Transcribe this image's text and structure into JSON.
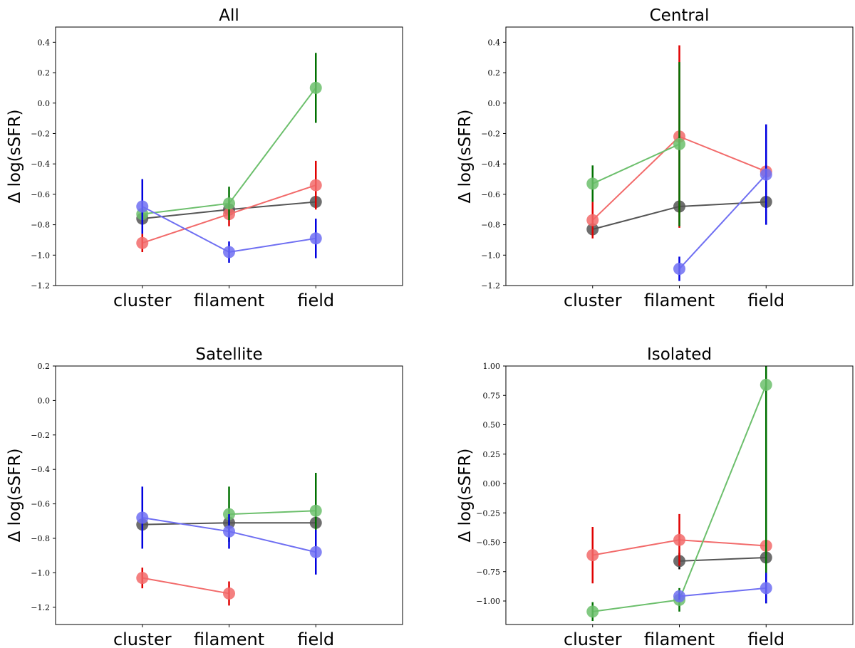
{
  "colors": {
    "black": "#555555",
    "red": "#f26a6a",
    "green": "#6cbf6c",
    "blue": "#6f6ff2",
    "err_black": "#000000",
    "err_red": "#e00000",
    "err_green": "#007000",
    "err_blue": "#0000e0"
  },
  "chart_data": [
    {
      "type": "line",
      "title": "All",
      "ylabel": "Δ log(sSFR)",
      "categories": [
        "cluster",
        "filament",
        "field"
      ],
      "ylim": [
        -1.2,
        0.5
      ],
      "yticks": [
        "−1.2",
        "−1.0",
        "−0.8",
        "−0.6",
        "−0.4",
        "−0.2",
        "0.0",
        "0.2",
        "0.4"
      ],
      "ytick_values": [
        -1.2,
        -1.0,
        -0.8,
        -0.6,
        -0.4,
        -0.2,
        0.0,
        0.2,
        0.4
      ],
      "series": [
        {
          "color": "black",
          "values": [
            -0.76,
            -0.7,
            -0.65
          ],
          "err": [
            0.02,
            0.02,
            0.01
          ]
        },
        {
          "color": "red",
          "values": [
            -0.92,
            -0.73,
            -0.54
          ],
          "err": [
            0.06,
            0.08,
            0.16
          ]
        },
        {
          "color": "green",
          "values": [
            -0.73,
            -0.66,
            0.1
          ],
          "err": [
            0.04,
            0.11,
            0.23
          ]
        },
        {
          "color": "blue",
          "values": [
            -0.68,
            -0.98,
            -0.89
          ],
          "err": [
            0.18,
            0.07,
            0.13
          ]
        }
      ]
    },
    {
      "type": "line",
      "title": "Central",
      "ylabel": "Δ log(sSFR)",
      "categories": [
        "cluster",
        "filament",
        "field"
      ],
      "ylim": [
        -1.2,
        0.5
      ],
      "yticks": [
        "−1.2",
        "−1.0",
        "−0.8",
        "−0.6",
        "−0.4",
        "−0.2",
        "0.0",
        "0.2",
        "0.4"
      ],
      "ytick_values": [
        -1.2,
        -1.0,
        -0.8,
        -0.6,
        -0.4,
        -0.2,
        0.0,
        0.2,
        0.4
      ],
      "series": [
        {
          "color": "black",
          "values": [
            -0.83,
            -0.68,
            -0.65
          ],
          "err": [
            0.02,
            0.02,
            0.02
          ]
        },
        {
          "color": "red",
          "values": [
            -0.77,
            -0.22,
            -0.45
          ],
          "err": [
            0.12,
            0.6,
            0.03
          ]
        },
        {
          "color": "green",
          "values": [
            -0.53,
            -0.27,
            null
          ],
          "err": [
            0.12,
            0.54,
            null
          ]
        },
        {
          "color": "blue",
          "values": [
            null,
            -1.09,
            -0.47
          ],
          "err": [
            null,
            0.08,
            0.33
          ]
        }
      ]
    },
    {
      "type": "line",
      "title": "Satellite",
      "ylabel": "Δ log(sSFR)",
      "categories": [
        "cluster",
        "filament",
        "field"
      ],
      "ylim": [
        -1.3,
        0.2
      ],
      "yticks": [
        "−1.2",
        "−1.0",
        "−0.8",
        "−0.6",
        "−0.4",
        "−0.2",
        "0.0",
        "0.2"
      ],
      "ytick_values": [
        -1.2,
        -1.0,
        -0.8,
        -0.6,
        -0.4,
        -0.2,
        0.0,
        0.2
      ],
      "series": [
        {
          "color": "black",
          "values": [
            -0.72,
            -0.71,
            -0.71
          ],
          "err": [
            0.02,
            0.02,
            0.02
          ]
        },
        {
          "color": "red",
          "values": [
            -1.03,
            -1.12,
            null
          ],
          "err": [
            0.06,
            0.07,
            null
          ]
        },
        {
          "color": "green",
          "values": [
            null,
            -0.66,
            -0.64
          ],
          "err": [
            null,
            0.16,
            0.22
          ]
        },
        {
          "color": "blue",
          "values": [
            -0.68,
            -0.76,
            -0.88
          ],
          "err": [
            0.18,
            0.1,
            0.13
          ]
        }
      ]
    },
    {
      "type": "line",
      "title": "Isolated",
      "ylabel": "Δ log(sSFR)",
      "categories": [
        "cluster",
        "filament",
        "field"
      ],
      "ylim": [
        -1.2,
        1.0
      ],
      "yticks": [
        "−1.00",
        "−0.75",
        "−0.50",
        "−0.25",
        "0.00",
        "0.25",
        "0.50",
        "0.75",
        "1.00"
      ],
      "ytick_values": [
        -1.0,
        -0.75,
        -0.5,
        -0.25,
        0.0,
        0.25,
        0.5,
        0.75,
        1.0
      ],
      "series": [
        {
          "color": "black",
          "values": [
            null,
            -0.66,
            -0.63
          ],
          "err": [
            null,
            0.07,
            0.02
          ]
        },
        {
          "color": "red",
          "values": [
            -0.61,
            -0.48,
            -0.53
          ],
          "err": [
            0.24,
            0.22,
            0.04
          ]
        },
        {
          "color": "green",
          "values": [
            -1.09,
            -0.99,
            0.84
          ],
          "err": [
            0.08,
            0.1,
            1.86
          ]
        },
        {
          "color": "blue",
          "values": [
            null,
            -0.96,
            -0.89
          ],
          "err": [
            null,
            0.03,
            0.13
          ]
        }
      ]
    }
  ]
}
